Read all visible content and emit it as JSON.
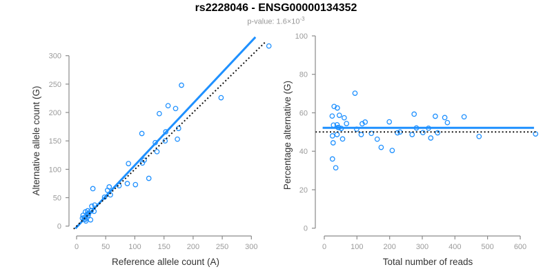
{
  "title": "rs2228046 - ENSG00000134352",
  "subtitle": {
    "text": "p-value: 1.6×10",
    "sup": "-3"
  },
  "colors": {
    "accent": "#1E90FF",
    "axis": "#8a8a8a",
    "tick_label": "#9a9a9a",
    "axis_label": "#333333",
    "dotted": "#111111",
    "title": "#000000",
    "subtitle": "#979797"
  },
  "chart_data": [
    {
      "type": "scatter",
      "name": "allele-counts",
      "xlabel": "Reference allele count (A)",
      "ylabel": "Alternative allele count (G)",
      "xticks": [
        0,
        50,
        100,
        150,
        200,
        250,
        300
      ],
      "yticks": [
        0,
        50,
        100,
        150,
        200,
        250,
        300
      ],
      "xlim": [
        -13,
        343
      ],
      "ylim": [
        -13,
        343
      ],
      "grid": false,
      "legend": "none",
      "points": [
        [
          10,
          14
        ],
        [
          13,
          12
        ],
        [
          16,
          9
        ],
        [
          15,
          12
        ],
        [
          13,
          15
        ],
        [
          11,
          19
        ],
        [
          24,
          11
        ],
        [
          18,
          21
        ],
        [
          20,
          19
        ],
        [
          15,
          25
        ],
        [
          20,
          22
        ],
        [
          21,
          23
        ],
        [
          19,
          27
        ],
        [
          25,
          27
        ],
        [
          30,
          26
        ],
        [
          26,
          35
        ],
        [
          31,
          37
        ],
        [
          28,
          66
        ],
        [
          48,
          51
        ],
        [
          58,
          55
        ],
        [
          53,
          63
        ],
        [
          56,
          69
        ],
        [
          73,
          71
        ],
        [
          87,
          75
        ],
        [
          101,
          73
        ],
        [
          89,
          110
        ],
        [
          124,
          84
        ],
        [
          113,
          111
        ],
        [
          116,
          116
        ],
        [
          138,
          131
        ],
        [
          112,
          163
        ],
        [
          135,
          147
        ],
        [
          152,
          150
        ],
        [
          153,
          166
        ],
        [
          173,
          153
        ],
        [
          142,
          198
        ],
        [
          175,
          172
        ],
        [
          157,
          212
        ],
        [
          170,
          207
        ],
        [
          180,
          248
        ],
        [
          248,
          226
        ],
        [
          330,
          317
        ]
      ],
      "lines": [
        {
          "label": "fitted-line",
          "style": "solid",
          "color": "#1E90FF",
          "slope": 1.09,
          "intercept": -2,
          "x_range": [
            -2,
            307
          ]
        },
        {
          "label": "identity-line",
          "style": "dotted",
          "color": "#111111",
          "slope": 1,
          "intercept": 0,
          "x_range": [
            -5,
            325
          ]
        }
      ]
    },
    {
      "type": "scatter",
      "name": "percentage-vs-reads",
      "xlabel": "Total number of reads",
      "ylabel": "Percentage alternative (G)",
      "xticks": [
        0,
        100,
        200,
        300,
        400,
        500,
        600
      ],
      "yticks": [
        0,
        20,
        40,
        60,
        80,
        100
      ],
      "xlim": [
        -27,
        673
      ],
      "ylim": [
        -4,
        104
      ],
      "grid": false,
      "legend": "none",
      "points": [
        [
          24,
          58.3
        ],
        [
          25,
          48.0
        ],
        [
          25,
          36.0
        ],
        [
          27,
          44.4
        ],
        [
          28,
          53.6
        ],
        [
          30,
          63.3
        ],
        [
          35,
          31.4
        ],
        [
          39,
          53.8
        ],
        [
          39,
          48.7
        ],
        [
          40,
          62.5
        ],
        [
          42,
          52.4
        ],
        [
          44,
          52.3
        ],
        [
          46,
          58.7
        ],
        [
          52,
          51.9
        ],
        [
          56,
          46.4
        ],
        [
          61,
          57.4
        ],
        [
          68,
          54.4
        ],
        [
          94,
          70.2
        ],
        [
          99,
          51.5
        ],
        [
          113,
          48.7
        ],
        [
          116,
          54.3
        ],
        [
          125,
          55.2
        ],
        [
          144,
          49.3
        ],
        [
          162,
          46.3
        ],
        [
          174,
          42.0
        ],
        [
          199,
          55.3
        ],
        [
          208,
          40.4
        ],
        [
          224,
          49.6
        ],
        [
          232,
          50.0
        ],
        [
          269,
          48.7
        ],
        [
          275,
          59.3
        ],
        [
          282,
          52.1
        ],
        [
          302,
          49.7
        ],
        [
          319,
          52.0
        ],
        [
          326,
          46.9
        ],
        [
          340,
          58.2
        ],
        [
          347,
          49.6
        ],
        [
          369,
          57.5
        ],
        [
          377,
          54.9
        ],
        [
          428,
          57.9
        ],
        [
          474,
          47.7
        ],
        [
          647,
          49.0
        ]
      ],
      "lines": [
        {
          "label": "fitted-line",
          "style": "solid",
          "color": "#1E90FF",
          "slope": 0,
          "intercept": 52.2,
          "x_range": [
            -5,
            642
          ]
        },
        {
          "label": "expected-50-line",
          "style": "dotted",
          "color": "#111111",
          "slope": 0,
          "intercept": 50,
          "x_range": [
            -27,
            651
          ]
        }
      ]
    }
  ]
}
